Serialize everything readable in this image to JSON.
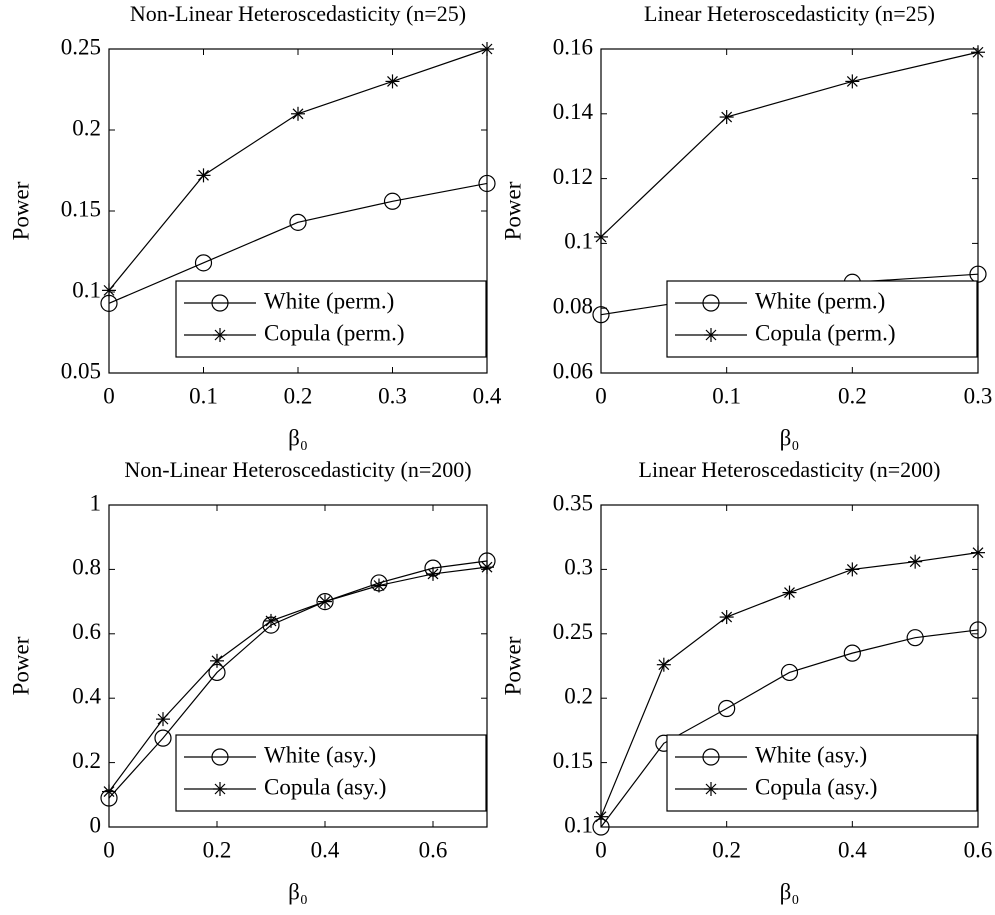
{
  "chart_data": [
    {
      "type": "line",
      "title": "Non-Linear Heteroscedasticity (n=25)",
      "xlabel": "β₀",
      "ylabel": "Power",
      "x": [
        0,
        0.1,
        0.2,
        0.3,
        0.4
      ],
      "xlim": [
        0,
        0.4
      ],
      "xticks": [
        0,
        0.1,
        0.2,
        0.3,
        0.4
      ],
      "ylim": [
        0.05,
        0.25
      ],
      "yticks": [
        0.05,
        0.1,
        0.15,
        0.2,
        0.25
      ],
      "legend": "lower right",
      "series": [
        {
          "name": "White (perm.)",
          "color": "#000000",
          "marker": "circle",
          "values": [
            0.093,
            0.118,
            0.143,
            0.156,
            0.167
          ]
        },
        {
          "name": "Copula (perm.)",
          "color": "#000000",
          "marker": "asterisk",
          "values": [
            0.101,
            0.172,
            0.21,
            0.23,
            0.25
          ]
        }
      ]
    },
    {
      "type": "line",
      "title": "Linear Heteroscedasticity (n=25)",
      "xlabel": "β₀",
      "ylabel": "Power",
      "x": [
        0,
        0.1,
        0.2,
        0.3
      ],
      "xlim": [
        0,
        0.3
      ],
      "xticks": [
        0,
        0.1,
        0.2,
        0.3
      ],
      "ylim": [
        0.06,
        0.16
      ],
      "yticks": [
        0.06,
        0.08,
        0.1,
        0.12,
        0.14,
        0.16
      ],
      "legend": "lower right",
      "series": [
        {
          "name": "White (perm.)",
          "color": "#000000",
          "marker": "circle",
          "values": [
            0.078,
            0.084,
            0.088,
            0.0905
          ]
        },
        {
          "name": "Copula (perm.)",
          "color": "#000000",
          "marker": "asterisk",
          "values": [
            0.102,
            0.139,
            0.15,
            0.159
          ]
        }
      ]
    },
    {
      "type": "line",
      "title": "Non-Linear Heteroscedasticity (n=200)",
      "xlabel": "β₀",
      "ylabel": "Power",
      "x": [
        0,
        0.1,
        0.2,
        0.3,
        0.4,
        0.5,
        0.6,
        0.7
      ],
      "xlim": [
        0,
        0.7
      ],
      "xticks": [
        0,
        0.2,
        0.4,
        0.6
      ],
      "ylim": [
        0,
        1
      ],
      "yticks": [
        0,
        0.2,
        0.4,
        0.6,
        0.8,
        1
      ],
      "legend": "lower right",
      "series": [
        {
          "name": "White (asy.)",
          "color": "#000000",
          "marker": "circle",
          "values": [
            0.09,
            0.276,
            0.48,
            0.627,
            0.7,
            0.758,
            0.804,
            0.826
          ]
        },
        {
          "name": "Copula (asy.)",
          "color": "#000000",
          "marker": "asterisk",
          "values": [
            0.11,
            0.335,
            0.516,
            0.64,
            0.7,
            0.75,
            0.786,
            0.807
          ]
        }
      ]
    },
    {
      "type": "line",
      "title": "Linear Heteroscedasticity (n=200)",
      "xlabel": "β₀",
      "ylabel": "Power",
      "x": [
        0,
        0.1,
        0.2,
        0.3,
        0.4,
        0.5,
        0.6
      ],
      "xlim": [
        0,
        0.6
      ],
      "xticks": [
        0,
        0.2,
        0.4,
        0.6
      ],
      "ylim": [
        0.1,
        0.35
      ],
      "yticks": [
        0.1,
        0.15,
        0.2,
        0.25,
        0.3,
        0.35
      ],
      "legend": "lower right",
      "series": [
        {
          "name": "White (asy.)",
          "color": "#000000",
          "marker": "circle",
          "values": [
            0.1,
            0.165,
            0.192,
            0.22,
            0.235,
            0.247,
            0.253
          ]
        },
        {
          "name": "Copula (asy.)",
          "color": "#000000",
          "marker": "asterisk",
          "values": [
            0.108,
            0.226,
            0.263,
            0.282,
            0.3,
            0.306,
            0.313
          ]
        }
      ]
    }
  ]
}
